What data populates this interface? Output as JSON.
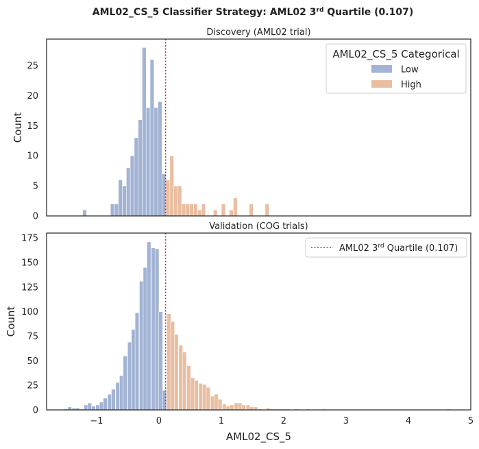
{
  "figure": {
    "suptitle_main": "AML02_CS_5 Classifier Strategy: AML02 3",
    "suptitle_sup": "rd",
    "suptitle_end": " Quartile (0.107)"
  },
  "colors": {
    "low": "#a2b3d4",
    "high": "#eabea1",
    "threshold": "#d62728",
    "axes": "#222222"
  },
  "chart_data": [
    {
      "type": "bar",
      "subtype": "histogram",
      "title": "Discovery (AML02 trial)",
      "xlabel": "",
      "ylabel": "Count",
      "xlim": [
        -1.8,
        5.0
      ],
      "ylim": [
        0,
        29.4
      ],
      "yticks": [
        0,
        5,
        10,
        15,
        20,
        25
      ],
      "xticks": [
        -1,
        0,
        1,
        2,
        3,
        4,
        5
      ],
      "show_xtick_labels": false,
      "bin_width": 0.0635,
      "threshold": 0.107,
      "legend": {
        "title": "AML02_CS_5 Categorical",
        "position": "top-right",
        "entries": [
          "Low",
          "High"
        ]
      },
      "bins": [
        {
          "x": -1.19,
          "count": 1,
          "group": "Low"
        },
        {
          "x": -0.745,
          "count": 2,
          "group": "Low"
        },
        {
          "x": -0.68,
          "count": 2,
          "group": "Low"
        },
        {
          "x": -0.617,
          "count": 6,
          "group": "Low"
        },
        {
          "x": -0.554,
          "count": 5,
          "group": "Low"
        },
        {
          "x": -0.49,
          "count": 8,
          "group": "Low"
        },
        {
          "x": -0.427,
          "count": 10,
          "group": "Low"
        },
        {
          "x": -0.363,
          "count": 13,
          "group": "Low"
        },
        {
          "x": -0.3,
          "count": 16,
          "group": "Low"
        },
        {
          "x": -0.236,
          "count": 28,
          "group": "Low"
        },
        {
          "x": -0.173,
          "count": 18,
          "group": "Low"
        },
        {
          "x": -0.109,
          "count": 26,
          "group": "Low"
        },
        {
          "x": -0.046,
          "count": 18,
          "group": "Low"
        },
        {
          "x": 0.017,
          "count": 19,
          "group": "Low"
        },
        {
          "x": 0.08,
          "count": 7,
          "group": "Low"
        },
        {
          "x": 0.144,
          "count": 6,
          "group": "High"
        },
        {
          "x": 0.207,
          "count": 10,
          "group": "High"
        },
        {
          "x": 0.271,
          "count": 5,
          "group": "High"
        },
        {
          "x": 0.334,
          "count": 5,
          "group": "High"
        },
        {
          "x": 0.398,
          "count": 2,
          "group": "High"
        },
        {
          "x": 0.461,
          "count": 2,
          "group": "High"
        },
        {
          "x": 0.525,
          "count": 2,
          "group": "High"
        },
        {
          "x": 0.588,
          "count": 2,
          "group": "High"
        },
        {
          "x": 0.652,
          "count": 1,
          "group": "High"
        },
        {
          "x": 0.715,
          "count": 2,
          "group": "High"
        },
        {
          "x": 0.905,
          "count": 1,
          "group": "High"
        },
        {
          "x": 1.035,
          "count": 2,
          "group": "High"
        },
        {
          "x": 1.16,
          "count": 1,
          "group": "High"
        },
        {
          "x": 1.225,
          "count": 3,
          "group": "High"
        },
        {
          "x": 1.48,
          "count": 2,
          "group": "High"
        },
        {
          "x": 1.735,
          "count": 2,
          "group": "High"
        }
      ]
    },
    {
      "type": "bar",
      "subtype": "histogram",
      "title": "Validation (COG trials)",
      "xlabel": "AML02_CS_5",
      "ylabel": "Count",
      "xlim": [
        -1.8,
        5.0
      ],
      "ylim": [
        0,
        180
      ],
      "yticks": [
        0,
        25,
        50,
        75,
        100,
        125,
        150,
        175
      ],
      "xticks": [
        -1,
        0,
        1,
        2,
        3,
        4,
        5
      ],
      "show_xtick_labels": true,
      "bin_width": 0.0635,
      "threshold": 0.107,
      "legend": {
        "position": "top-right",
        "entries": [
          {
            "main": "AML02 3",
            "sup": "rd",
            "end": " Quartile (0.107)"
          }
        ]
      },
      "bins": [
        {
          "x": -1.49,
          "count": 1,
          "group": "Low"
        },
        {
          "x": -1.43,
          "count": 3,
          "group": "Low"
        },
        {
          "x": -1.36,
          "count": 2,
          "group": "Low"
        },
        {
          "x": -1.3,
          "count": 2,
          "group": "Low"
        },
        {
          "x": -1.24,
          "count": 1,
          "group": "Low"
        },
        {
          "x": -1.17,
          "count": 5,
          "group": "Low"
        },
        {
          "x": -1.11,
          "count": 7,
          "group": "Low"
        },
        {
          "x": -1.05,
          "count": 4,
          "group": "Low"
        },
        {
          "x": -0.98,
          "count": 5,
          "group": "Low"
        },
        {
          "x": -0.92,
          "count": 8,
          "group": "Low"
        },
        {
          "x": -0.86,
          "count": 12,
          "group": "Low"
        },
        {
          "x": -0.79,
          "count": 16,
          "group": "Low"
        },
        {
          "x": -0.73,
          "count": 21,
          "group": "Low"
        },
        {
          "x": -0.66,
          "count": 28,
          "group": "Low"
        },
        {
          "x": -0.6,
          "count": 35,
          "group": "Low"
        },
        {
          "x": -0.54,
          "count": 55,
          "group": "Low"
        },
        {
          "x": -0.47,
          "count": 69,
          "group": "Low"
        },
        {
          "x": -0.41,
          "count": 82,
          "group": "Low"
        },
        {
          "x": -0.35,
          "count": 99,
          "group": "Low"
        },
        {
          "x": -0.28,
          "count": 131,
          "group": "Low"
        },
        {
          "x": -0.22,
          "count": 145,
          "group": "Low"
        },
        {
          "x": -0.16,
          "count": 171,
          "group": "Low"
        },
        {
          "x": -0.09,
          "count": 165,
          "group": "Low"
        },
        {
          "x": -0.03,
          "count": 164,
          "group": "Low"
        },
        {
          "x": 0.03,
          "count": 100,
          "group": "Low"
        },
        {
          "x": 0.09,
          "count": 20,
          "group": "Low"
        },
        {
          "x": 0.16,
          "count": 98,
          "group": "High"
        },
        {
          "x": 0.22,
          "count": 90,
          "group": "High"
        },
        {
          "x": 0.28,
          "count": 77,
          "group": "High"
        },
        {
          "x": 0.35,
          "count": 66,
          "group": "High"
        },
        {
          "x": 0.41,
          "count": 59,
          "group": "High"
        },
        {
          "x": 0.48,
          "count": 45,
          "group": "High"
        },
        {
          "x": 0.54,
          "count": 33,
          "group": "High"
        },
        {
          "x": 0.6,
          "count": 30,
          "group": "High"
        },
        {
          "x": 0.67,
          "count": 27,
          "group": "High"
        },
        {
          "x": 0.73,
          "count": 26,
          "group": "High"
        },
        {
          "x": 0.79,
          "count": 23,
          "group": "High"
        },
        {
          "x": 0.86,
          "count": 14,
          "group": "High"
        },
        {
          "x": 0.92,
          "count": 16,
          "group": "High"
        },
        {
          "x": 0.98,
          "count": 11,
          "group": "High"
        },
        {
          "x": 1.05,
          "count": 6,
          "group": "High"
        },
        {
          "x": 1.11,
          "count": 4,
          "group": "High"
        },
        {
          "x": 1.17,
          "count": 5,
          "group": "High"
        },
        {
          "x": 1.24,
          "count": 7,
          "group": "High"
        },
        {
          "x": 1.3,
          "count": 7,
          "group": "High"
        },
        {
          "x": 1.36,
          "count": 5,
          "group": "High"
        },
        {
          "x": 1.43,
          "count": 5,
          "group": "High"
        },
        {
          "x": 1.49,
          "count": 3,
          "group": "High"
        },
        {
          "x": 1.55,
          "count": 3,
          "group": "High"
        },
        {
          "x": 1.62,
          "count": 1,
          "group": "High"
        },
        {
          "x": 1.75,
          "count": 2,
          "group": "High"
        },
        {
          "x": 1.81,
          "count": 1,
          "group": "High"
        },
        {
          "x": 1.87,
          "count": 1,
          "group": "High"
        },
        {
          "x": 1.94,
          "count": 1,
          "group": "High"
        },
        {
          "x": 2.0,
          "count": 1,
          "group": "High"
        },
        {
          "x": 2.07,
          "count": 1,
          "group": "High"
        },
        {
          "x": 2.2,
          "count": 1,
          "group": "High"
        },
        {
          "x": 2.39,
          "count": 1,
          "group": "High"
        },
        {
          "x": 2.64,
          "count": 1,
          "group": "High"
        },
        {
          "x": 4.65,
          "count": 1,
          "group": "High"
        }
      ]
    }
  ]
}
